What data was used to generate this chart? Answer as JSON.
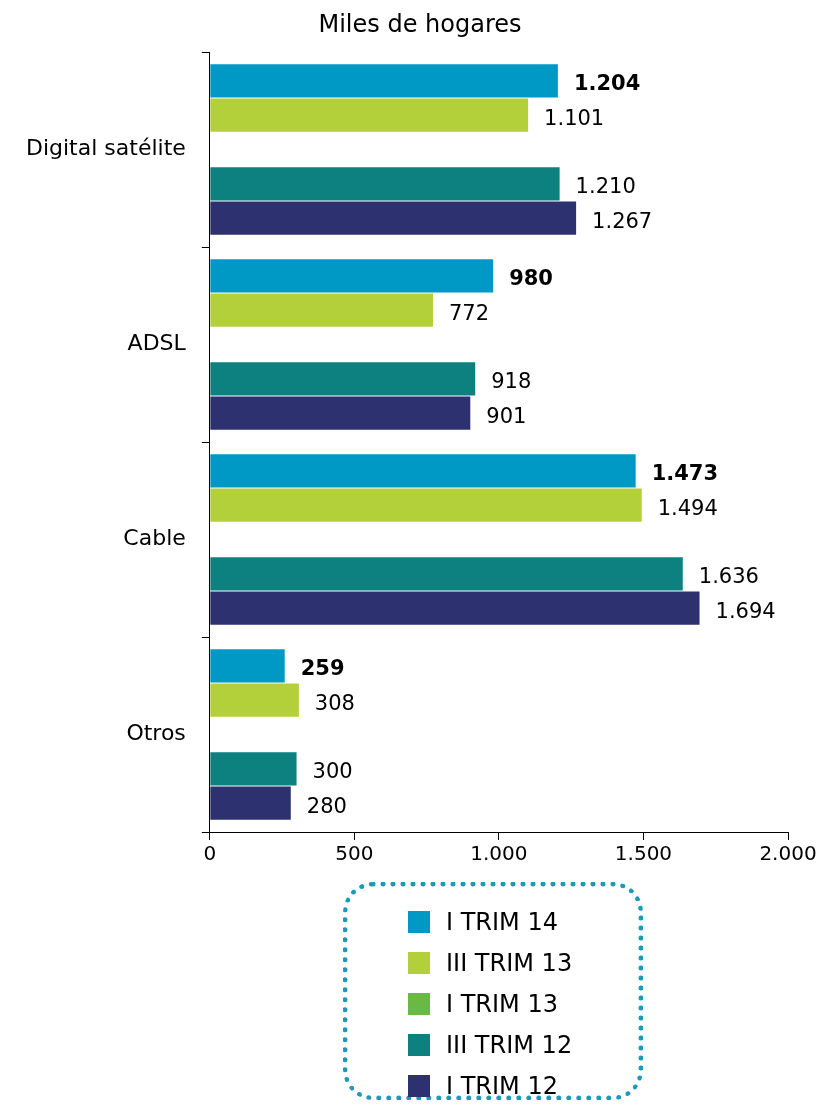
{
  "chart_data": {
    "type": "bar",
    "orientation": "horizontal",
    "title": "Miles de hogares",
    "categories": [
      "Digital satélite",
      "ADSL",
      "Cable",
      "Otros"
    ],
    "series": [
      {
        "name": "I TRIM 14",
        "color": "#0099c6",
        "values": [
          1204,
          980,
          1473,
          259
        ],
        "value_labels": [
          "1.204",
          "980",
          "1.473",
          "259"
        ]
      },
      {
        "name": "III TRIM 13",
        "color": "#b3cf3a",
        "values": [
          1101,
          772,
          1494,
          308
        ],
        "value_labels": [
          "1.101",
          "772",
          "1.494",
          "308"
        ]
      },
      {
        "name": "I TRIM 13",
        "color": "#6ab945",
        "values": [
          null,
          null,
          null,
          null
        ]
      },
      {
        "name": "III TRIM 12",
        "color": "#0d8080",
        "values": [
          1210,
          918,
          1636,
          300
        ],
        "value_labels": [
          "1.210",
          "918",
          "1.636",
          "300"
        ]
      },
      {
        "name": "I TRIM 12",
        "color": "#2e3170",
        "values": [
          1267,
          901,
          1694,
          280
        ],
        "value_labels": [
          "1.267",
          "901",
          "1.694",
          "280"
        ]
      }
    ],
    "xlim": [
      0,
      2000
    ],
    "xticks": [
      0,
      {
        "value": 500,
        "label": "500"
      },
      {
        "value": 1000,
        "label": "1.000"
      },
      {
        "value": 1500,
        "label": "1.500"
      },
      {
        "value": 2000,
        "label": "2.000"
      }
    ],
    "grid": false,
    "legend": "bottom"
  }
}
